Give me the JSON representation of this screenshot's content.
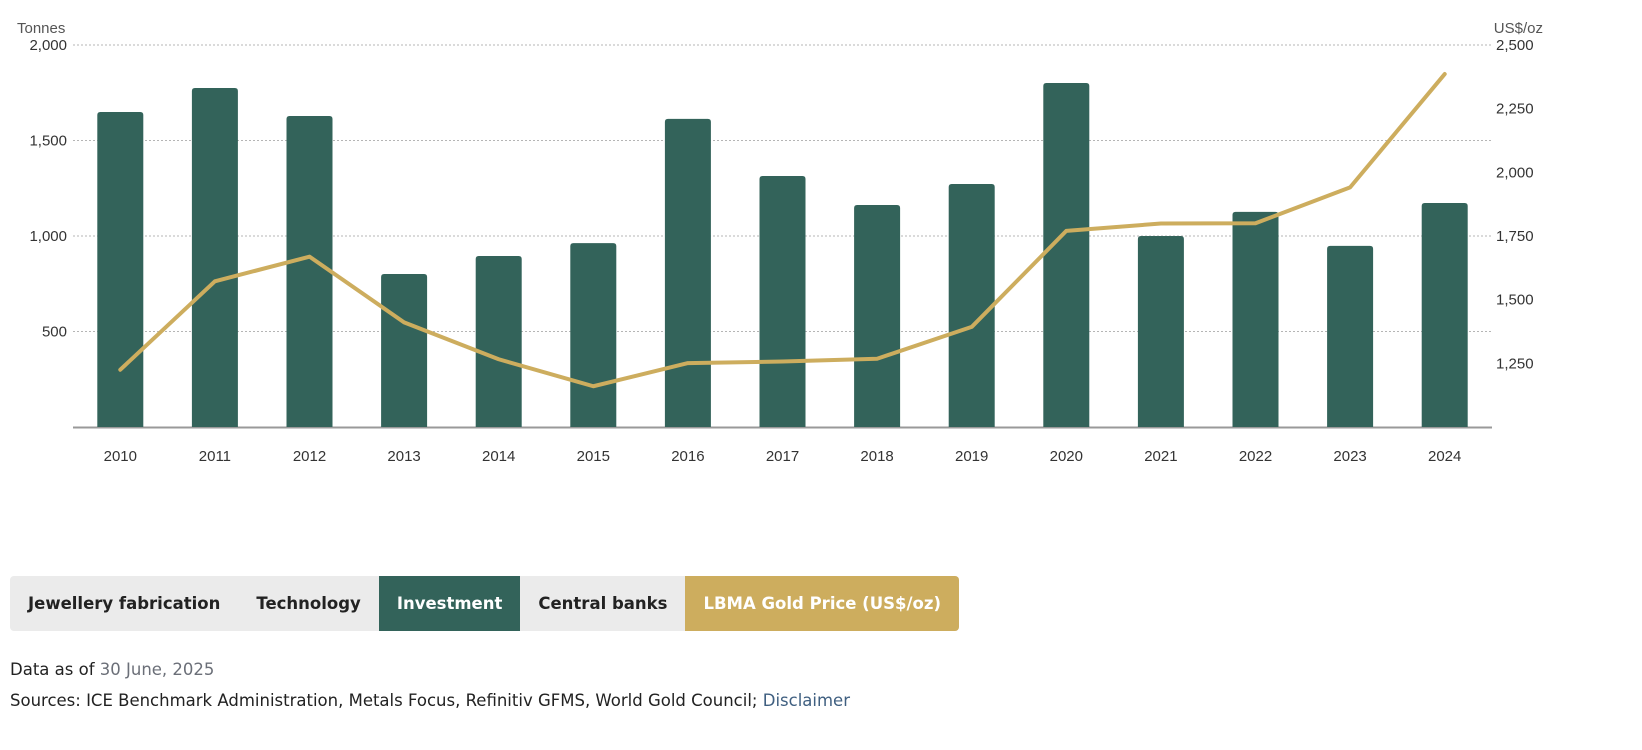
{
  "chart_data": {
    "type": "bar",
    "categories": [
      "2010",
      "2011",
      "2012",
      "2013",
      "2014",
      "2015",
      "2016",
      "2017",
      "2018",
      "2019",
      "2020",
      "2021",
      "2022",
      "2023",
      "2024"
    ],
    "series": [
      {
        "name": "Investment",
        "type": "bar",
        "axis": "left",
        "color": "#33635a",
        "values": [
          1649,
          1775,
          1628,
          801,
          895,
          963,
          1613,
          1314,
          1162,
          1272,
          1801,
          1000,
          1126,
          948,
          1173
        ]
      },
      {
        "name": "LBMA Gold Price (US$/oz)",
        "type": "line",
        "axis": "right",
        "color": "#cdad5e",
        "values": [
          1225,
          1572,
          1669,
          1411,
          1266,
          1160,
          1251,
          1257,
          1268,
          1393,
          1770,
          1799,
          1800,
          1941,
          2386
        ]
      }
    ],
    "left_axis": {
      "label": "Tonnes",
      "range": [
        0,
        2000
      ],
      "ticks": [
        "500",
        "1,000",
        "1,500",
        "2,000"
      ],
      "tick_values": [
        500,
        1000,
        1500,
        2000
      ]
    },
    "right_axis": {
      "label": "US$/oz",
      "range": [
        1000,
        2500
      ],
      "ticks": [
        "1,250",
        "1,500",
        "1,750",
        "2,000",
        "2,250",
        "2,500"
      ],
      "tick_values": [
        1250,
        1500,
        1750,
        2000,
        2250,
        2500
      ]
    },
    "grid": true,
    "legend_placement": "bottom"
  },
  "legend": {
    "items": [
      "Jewellery fabrication",
      "Technology",
      "Investment",
      "Central banks",
      "LBMA Gold Price (US$/oz)"
    ],
    "active": "Investment"
  },
  "footer": {
    "data_as_of_label": "Data as of",
    "data_as_of_date": "30 June, 2025",
    "sources": "Sources: ICE Benchmark Administration, Metals Focus, Refinitiv GFMS, World Gold Council;",
    "disclaimer": "Disclaimer"
  }
}
